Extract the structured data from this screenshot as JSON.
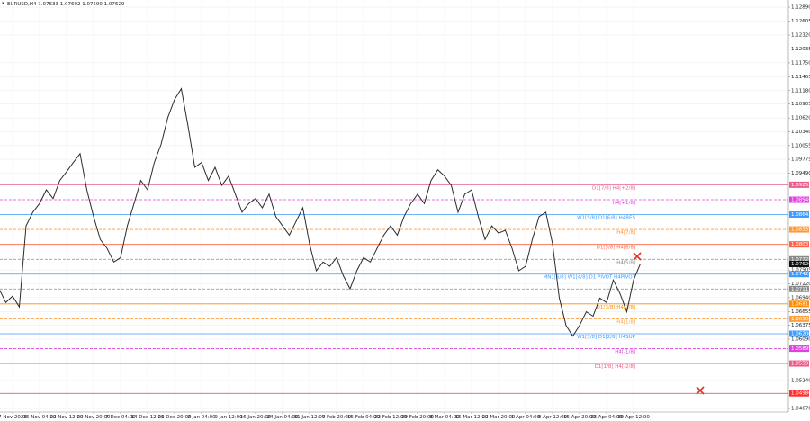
{
  "chart_data": {
    "type": "line",
    "title": "EURUSD,H4  1.07633 1.07692 1.07590 1.07629",
    "color": "#2b2b2b",
    "grid": true,
    "categories": [
      null,
      null,
      "7 Nov 2023",
      null,
      null,
      null,
      "15 Nov 04:00",
      null,
      null,
      null,
      "22 Nov 12:00",
      null,
      null,
      null,
      "29 Nov 20:00",
      null,
      null,
      null,
      "7 Dec 04:00",
      null,
      null,
      null,
      "14 Dec 12:00",
      null,
      null,
      null,
      "21 Dec 20:00",
      null,
      null,
      null,
      "2 Jan 04:00",
      null,
      null,
      null,
      "9 Jan 12:00",
      null,
      null,
      null,
      "16 Jan 20:00",
      null,
      null,
      null,
      "24 Jan 04:00",
      null,
      null,
      null,
      "31 Jan 12:00",
      null,
      null,
      null,
      "7 Feb 20:00",
      null,
      null,
      null,
      "15 Feb 04:00",
      null,
      null,
      null,
      "22 Feb 12:00",
      null,
      null,
      null,
      "29 Feb 20:00",
      null,
      null,
      null,
      "8 Mar 04:00",
      null,
      null,
      null,
      "15 Mar 12:00",
      null,
      null,
      null,
      "22 Mar 20:00",
      null,
      null,
      null,
      "1 Apr 04:00",
      null,
      null,
      null,
      "8 Apr 12:00",
      null,
      null,
      null,
      "15 Apr 20:00",
      null,
      null,
      null,
      "23 Apr 04:00",
      null,
      null,
      null,
      "30 Apr 12:00",
      null
    ],
    "values": [
      1.0712,
      1.0684,
      1.0697,
      1.0675,
      1.0841,
      1.0869,
      1.0887,
      1.0915,
      1.0897,
      1.0934,
      1.0952,
      1.0971,
      1.0989,
      1.0915,
      1.086,
      1.0813,
      1.0795,
      1.0767,
      1.0776,
      1.0841,
      1.0887,
      1.0934,
      1.0915,
      1.0971,
      1.1008,
      1.1063,
      1.11,
      1.1122,
      1.1045,
      1.0961,
      1.0971,
      1.0934,
      1.0961,
      1.0924,
      1.0943,
      1.0906,
      1.0869,
      1.0887,
      1.0897,
      1.0878,
      1.0906,
      1.086,
      1.0841,
      1.0822,
      1.085,
      1.0878,
      1.0804,
      1.0749,
      1.0767,
      1.0758,
      1.0776,
      1.0739,
      1.0712,
      1.0749,
      1.0776,
      1.0767,
      1.0795,
      1.0822,
      1.0841,
      1.0822,
      1.086,
      1.0887,
      1.0906,
      1.0887,
      1.0934,
      1.0956,
      1.0943,
      1.0924,
      1.0869,
      1.0906,
      1.0915,
      1.086,
      1.0813,
      1.0841,
      1.0826,
      1.0832,
      1.0795,
      1.0749,
      1.0758,
      1.0813,
      1.086,
      1.0869,
      1.0804,
      1.0693,
      1.0637,
      1.0615,
      1.0637,
      1.0665,
      1.0656,
      1.0693,
      1.0684,
      1.073,
      1.0702,
      1.0665,
      1.073,
      1.0763
    ],
    "ylim": [
      1.04597,
      1.13038
    ],
    "yticks": [
      {
        "value": 1.1289,
        "label": "1.12890"
      },
      {
        "value": 1.12605,
        "label": "1.12605"
      },
      {
        "value": 1.1232,
        "label": "1.12320"
      },
      {
        "value": 1.12035,
        "label": "1.12035"
      },
      {
        "value": 1.1175,
        "label": "1.11750"
      },
      {
        "value": 1.11465,
        "label": "1.11465"
      },
      {
        "value": 1.1118,
        "label": "1.11180"
      },
      {
        "value": 1.10905,
        "label": "1.10905"
      },
      {
        "value": 1.1062,
        "label": "1.10620"
      },
      {
        "value": 1.1034,
        "label": "1.10340"
      },
      {
        "value": 1.10055,
        "label": "1.10055"
      },
      {
        "value": 1.09775,
        "label": "1.09775"
      },
      {
        "value": 1.0949,
        "label": "1.09490"
      },
      {
        "value": 1.07505,
        "label": "1.07505"
      },
      {
        "value": 1.0722,
        "label": "1.07220"
      },
      {
        "value": 1.0694,
        "label": "1.06940"
      },
      {
        "value": 1.06655,
        "label": "1.06655"
      },
      {
        "value": 1.06375,
        "label": "1.06375"
      },
      {
        "value": 1.0609,
        "label": "1.06090"
      },
      {
        "value": 1.0524,
        "label": "1.05240"
      },
      {
        "value": 1.0467,
        "label": "1.04670"
      }
    ],
    "levels": [
      {
        "label": "D1[7/8] H4[+2/8]",
        "value": 1.09253,
        "value_label": "1.09253",
        "color": "#e8608a",
        "dash": false
      },
      {
        "label": "H4[+1/8]",
        "value": 1.08946,
        "value_label": "1.08946",
        "color": "#e040e0",
        "dash": true
      },
      {
        "label": "W1[5/8] D1[6/8] H4RES",
        "value": 1.08643,
        "value_label": "1.08643",
        "color": "#3d9bff",
        "dash": false
      },
      {
        "label": "H4[7/8]",
        "value": 1.08337,
        "value_label": "1.08337",
        "color": "#ff9a3c",
        "dash": true
      },
      {
        "label": "D1[5/8] H4[6/8]",
        "value": 1.08031,
        "value_label": "1.08031",
        "color": "#ff6347",
        "dash": false
      },
      {
        "label": "H4[5/8]",
        "value": 1.07725,
        "value_label": "1.07725",
        "color": "#8a8a8a",
        "dash": true
      },
      {
        "label": "MN1[6/8] W1[4/8] D1 PIVOT H4PIVOT",
        "value": 1.07422,
        "value_label": "1.07422",
        "color": "#3d9bff",
        "dash": false
      },
      {
        "value": 1.07117,
        "value_label": "1.07117",
        "color": "#8a8a8a",
        "dash": true
      },
      {
        "label": "D1[3/8] H4[2/8]",
        "value": 1.06812,
        "value_label": "1.06812",
        "color": "#ff8c00",
        "dash": false
      },
      {
        "label": "H4[1/8]",
        "value": 1.06506,
        "value_label": "1.06506",
        "color": "#ffa040",
        "dash": true
      },
      {
        "label": "W1[3/8] D1[2/8] H4SUP",
        "value": 1.062,
        "value_label": "1.06200",
        "color": "#3d9bff",
        "dash": false
      },
      {
        "label": "H4[-1/8]",
        "value": 1.05895,
        "value_label": "1.05895",
        "color": "#e040e0",
        "dash": true
      },
      {
        "label": "D1[1/8] H4[-2/8]",
        "value": 1.05591,
        "value_label": "1.05591",
        "color": "#e8608a",
        "dash": false
      },
      {
        "value": 1.0498,
        "value_label": "1.04980",
        "color": "#ff3030",
        "dash": false
      }
    ],
    "last": {
      "value": 1.07629,
      "label": "1.07629"
    }
  }
}
